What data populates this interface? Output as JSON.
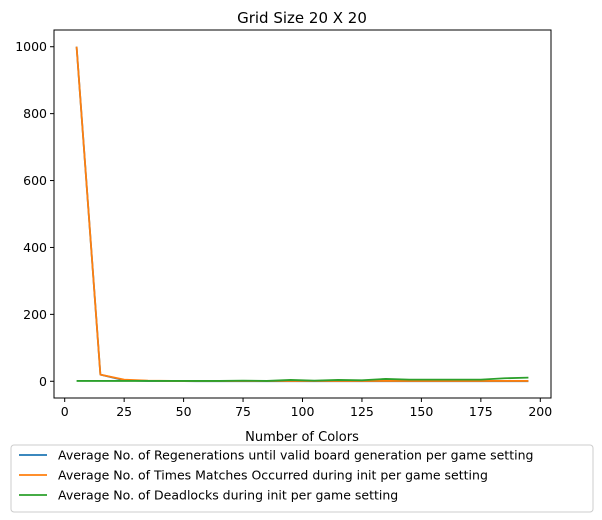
{
  "chart_data": {
    "type": "line",
    "title": "Grid Size 20 X 20",
    "xlabel": "Number of Colors",
    "ylabel": "",
    "xlim": [
      -4.5,
      204.5
    ],
    "ylim": [
      -50,
      1050
    ],
    "x_ticks": [
      0,
      25,
      50,
      75,
      100,
      125,
      150,
      175,
      200
    ],
    "y_ticks": [
      0,
      200,
      400,
      600,
      800,
      1000
    ],
    "grid": false,
    "legend_position": "below",
    "x": [
      5,
      15,
      25,
      35,
      45,
      55,
      65,
      75,
      85,
      95,
      105,
      115,
      125,
      135,
      145,
      155,
      165,
      175,
      185,
      195
    ],
    "series": [
      {
        "name": "Average No. of Regenerations until valid board generation per game setting",
        "color": "#1f77b4",
        "values": [
          1000,
          20,
          3,
          1,
          1,
          0,
          0,
          0,
          0,
          0,
          0,
          0,
          0,
          0,
          0,
          0,
          0,
          0,
          0,
          0
        ]
      },
      {
        "name": "Average No. of Times Matches Occurred during init per game setting",
        "color": "#ff7f0e",
        "values": [
          1000,
          20,
          5,
          2,
          1,
          1,
          1,
          1,
          1,
          1,
          1,
          1,
          1,
          1,
          1,
          1,
          1,
          1,
          1,
          1
        ]
      },
      {
        "name": "Average No. of Deadlocks during init per game setting",
        "color": "#2ca02c",
        "values": [
          1,
          1,
          1,
          1,
          1,
          1,
          1,
          2,
          1,
          4,
          2,
          4,
          3,
          7,
          5,
          5,
          5,
          5,
          9,
          11
        ]
      }
    ]
  }
}
